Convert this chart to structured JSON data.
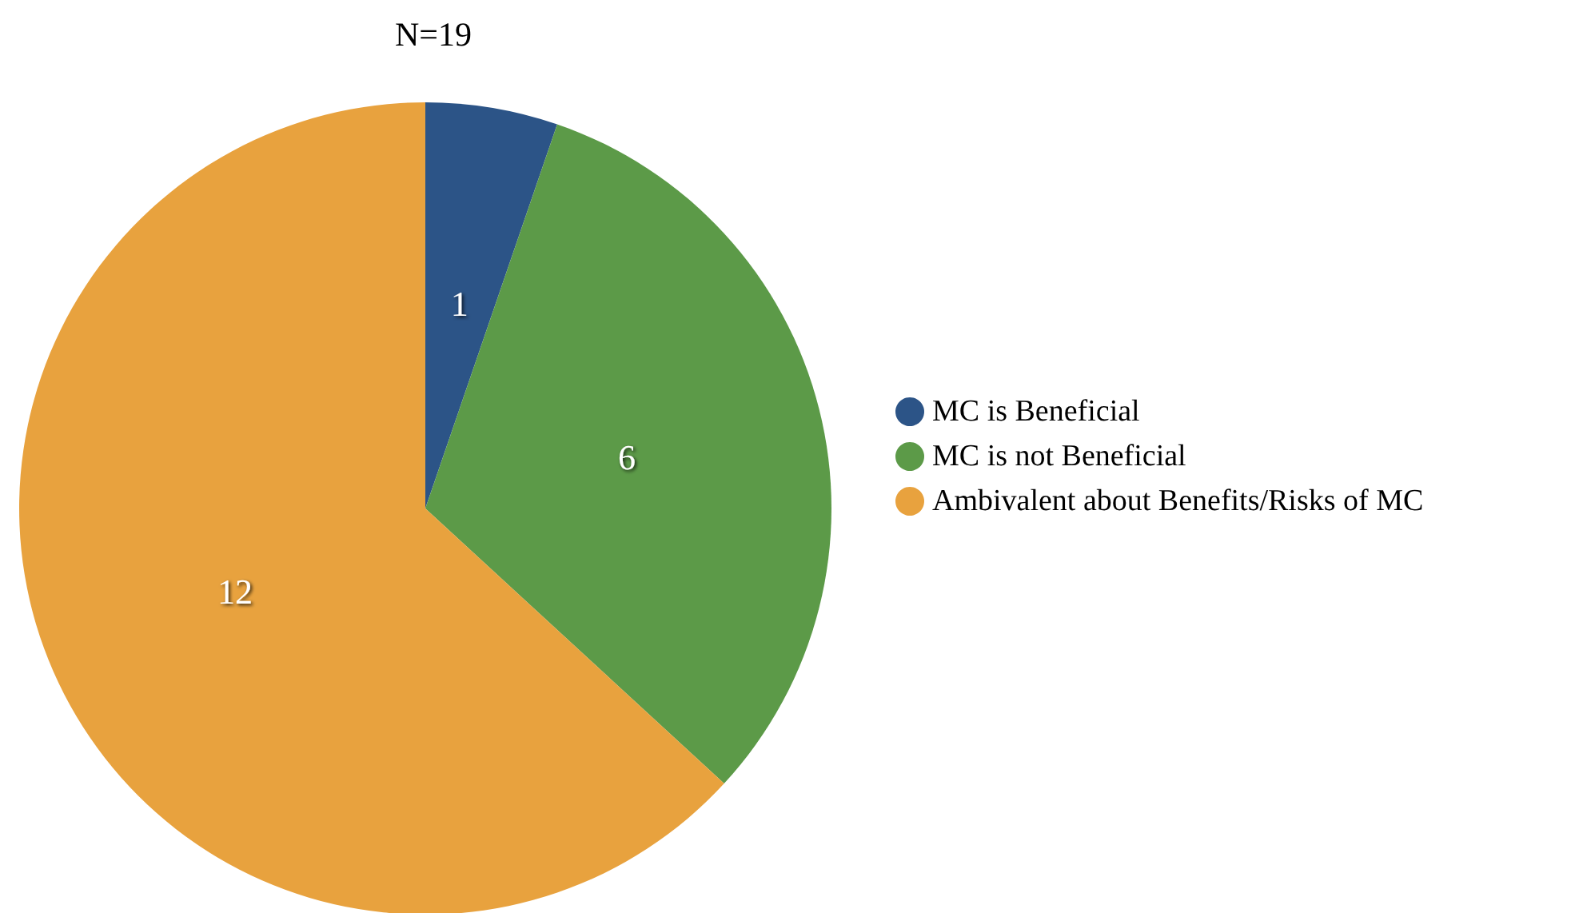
{
  "chart_data": {
    "type": "pie",
    "title": "N=19",
    "categories": [
      "MC is Beneficial",
      "MC is not Beneficial",
      "Ambivalent about Benefits/Risks of MC"
    ],
    "values": [
      1,
      6,
      12
    ],
    "colors": [
      "#2c5487",
      "#5c9a48",
      "#e8a23e"
    ],
    "data_labels": true,
    "legend": "right"
  }
}
